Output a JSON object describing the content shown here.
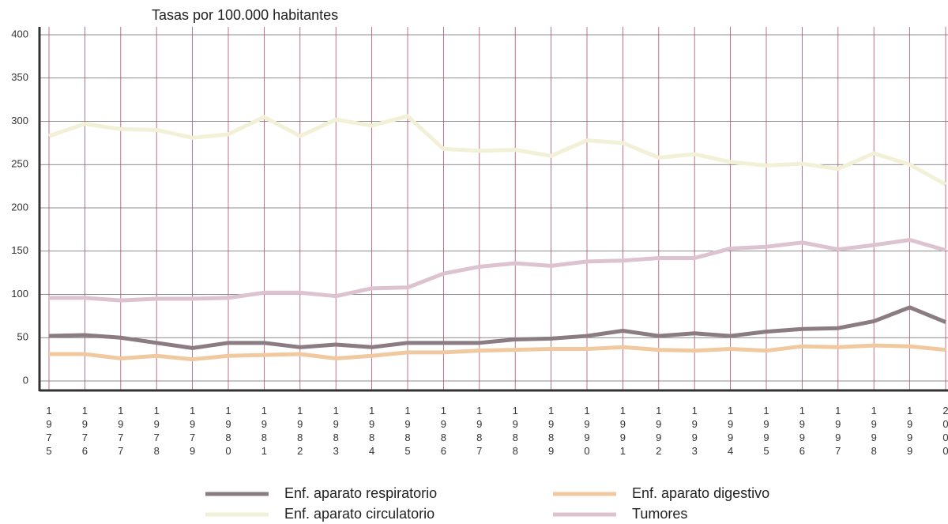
{
  "chart_data": {
    "type": "line",
    "title": "Tasas por 100.000 habitantes",
    "categories": [
      "1975",
      "1976",
      "1977",
      "1978",
      "1979",
      "1980",
      "1981",
      "1982",
      "1983",
      "1984",
      "1985",
      "1986",
      "1987",
      "1988",
      "1989",
      "1990",
      "1991",
      "1992",
      "1993",
      "1994",
      "1995",
      "1996",
      "1997",
      "1998",
      "1999",
      "2000"
    ],
    "series": [
      {
        "name": "Enf. aparato respiratorio",
        "color": "#8a7c82",
        "values": [
          52,
          53,
          50,
          44,
          38,
          44,
          44,
          39,
          42,
          39,
          44,
          44,
          44,
          48,
          49,
          52,
          58,
          52,
          55,
          52,
          57,
          60,
          61,
          69,
          85,
          68
        ]
      },
      {
        "name": "Enf. aparato circulatorio",
        "color": "#f3f0d8",
        "values": [
          283,
          297,
          291,
          290,
          281,
          285,
          305,
          283,
          302,
          295,
          306,
          268,
          266,
          267,
          260,
          278,
          275,
          258,
          262,
          253,
          249,
          251,
          245,
          263,
          250,
          227
        ]
      },
      {
        "name": "Enf. aparato digestivo",
        "color": "#f0c9a0",
        "values": [
          31,
          31,
          26,
          29,
          25,
          29,
          30,
          31,
          26,
          29,
          33,
          33,
          35,
          36,
          37,
          37,
          39,
          36,
          35,
          37,
          35,
          40,
          39,
          41,
          40,
          36
        ]
      },
      {
        "name": "Tumores",
        "color": "#ddc3cf",
        "values": [
          96,
          96,
          93,
          95,
          95,
          96,
          102,
          102,
          98,
          107,
          108,
          124,
          132,
          136,
          133,
          138,
          139,
          142,
          142,
          153,
          155,
          160,
          152,
          157,
          163,
          151
        ]
      }
    ],
    "ylim": [
      0,
      400
    ],
    "yticks": [
      0,
      50,
      100,
      150,
      200,
      250,
      300,
      350,
      400
    ],
    "grid": true
  }
}
